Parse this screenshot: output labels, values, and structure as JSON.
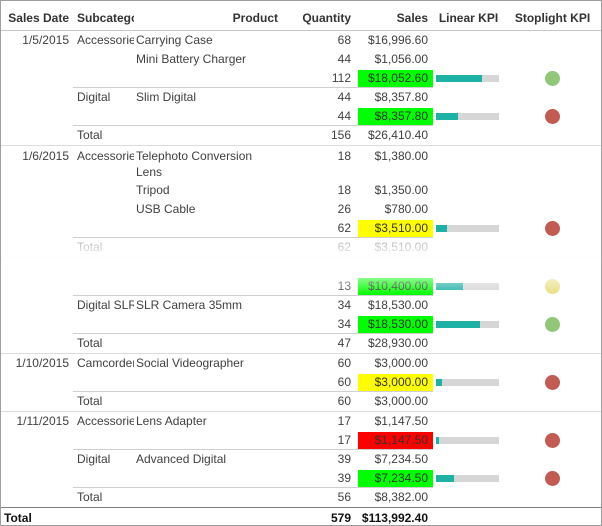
{
  "table": {
    "headers": [
      "Sales Date",
      "Subcategory",
      "Product",
      "Quantity",
      "Sales",
      "Linear KPI",
      "Stoplight KPI"
    ],
    "colors": {
      "sales_bg": {
        "green": "#00FF00",
        "yellow": "#FFFF00",
        "red": "#FF0000"
      },
      "dot": {
        "green": "#90C878",
        "red": "#C25B52",
        "yellow": "#E9DF7F"
      },
      "bar_fill": "#1EB2A6",
      "bar_track": "#D6D6D6"
    },
    "rows": [
      {
        "type": "detail",
        "date": "1/5/2015",
        "subcategory": "Accessories",
        "product": "Carrying Case",
        "quantity": "68",
        "sales": "$16,996.60"
      },
      {
        "type": "detail",
        "product": "Mini Battery Charger",
        "quantity": "44",
        "sales": "$1,056.00"
      },
      {
        "type": "subtotal",
        "quantity": "112",
        "sales": "$18,052.60",
        "sales_bg": "green",
        "bar_pct": 73,
        "dot": "green",
        "sep": "sub"
      },
      {
        "type": "detail",
        "subcategory": "Digital",
        "product": "Slim Digital",
        "quantity": "44",
        "sales": "$8,357.80"
      },
      {
        "type": "subtotal",
        "quantity": "44",
        "sales": "$8,357.80",
        "sales_bg": "green",
        "bar_pct": 35,
        "dot": "red",
        "sep": "sub"
      },
      {
        "type": "total",
        "subcategory": "Total",
        "quantity": "156",
        "sales": "$26,410.40",
        "sep": "full"
      },
      {
        "type": "detail",
        "date": "1/6/2015",
        "subcategory": "Accessories",
        "product": "Telephoto Conversion Lens",
        "quantity": "18",
        "sales": "$1,380.00"
      },
      {
        "type": "detail",
        "product": "Tripod",
        "quantity": "18",
        "sales": "$1,350.00"
      },
      {
        "type": "detail",
        "product": "USB Cable",
        "quantity": "26",
        "sales": "$780.00"
      },
      {
        "type": "subtotal",
        "quantity": "62",
        "sales": "$3,510.00",
        "sales_bg": "yellow",
        "bar_pct": 18,
        "dot": "red",
        "sep": "sub"
      },
      {
        "type": "total",
        "subcategory": "Total",
        "quantity": "62",
        "sales": "$3,510.00",
        "sep": "full",
        "faded": true
      },
      {
        "type": "hidden"
      },
      {
        "type": "subtotal",
        "quantity": "13",
        "sales": "$10,400.00",
        "sales_bg": "green",
        "bar_pct": 43,
        "dot": "yellow",
        "sep": "sub",
        "faded": true
      },
      {
        "type": "detail",
        "subcategory": "Digital SLR",
        "product": "SLR Camera 35mm",
        "quantity": "34",
        "sales": "$18,530.00"
      },
      {
        "type": "subtotal",
        "quantity": "34",
        "sales": "$18,530.00",
        "sales_bg": "green",
        "bar_pct": 70,
        "dot": "green",
        "sep": "sub"
      },
      {
        "type": "total",
        "subcategory": "Total",
        "quantity": "47",
        "sales": "$28,930.00",
        "sep": "full"
      },
      {
        "type": "detail",
        "date": "1/10/2015",
        "subcategory": "Camcorders",
        "product": "Social Videographer",
        "quantity": "60",
        "sales": "$3,000.00"
      },
      {
        "type": "subtotal",
        "quantity": "60",
        "sales": "$3,000.00",
        "sales_bg": "yellow",
        "bar_pct": 10,
        "dot": "red",
        "sep": "sub"
      },
      {
        "type": "total",
        "subcategory": "Total",
        "quantity": "60",
        "sales": "$3,000.00",
        "sep": "full"
      },
      {
        "type": "detail",
        "date": "1/11/2015",
        "subcategory": "Accessories",
        "product": "Lens Adapter",
        "quantity": "17",
        "sales": "$1,147.50"
      },
      {
        "type": "subtotal",
        "quantity": "17",
        "sales": "$1,147.50",
        "sales_bg": "red",
        "bar_pct": 5,
        "dot": "red",
        "sep": "sub"
      },
      {
        "type": "detail",
        "subcategory": "Digital",
        "product": "Advanced Digital",
        "quantity": "39",
        "sales": "$7,234.50"
      },
      {
        "type": "subtotal",
        "quantity": "39",
        "sales": "$7,234.50",
        "sales_bg": "green",
        "bar_pct": 28,
        "dot": "red",
        "sep": "sub"
      },
      {
        "type": "total",
        "subcategory": "Total",
        "quantity": "56",
        "sales": "$8,382.00"
      },
      {
        "type": "grand",
        "date": "Total",
        "quantity": "579",
        "sales": "$113,992.40"
      }
    ]
  }
}
